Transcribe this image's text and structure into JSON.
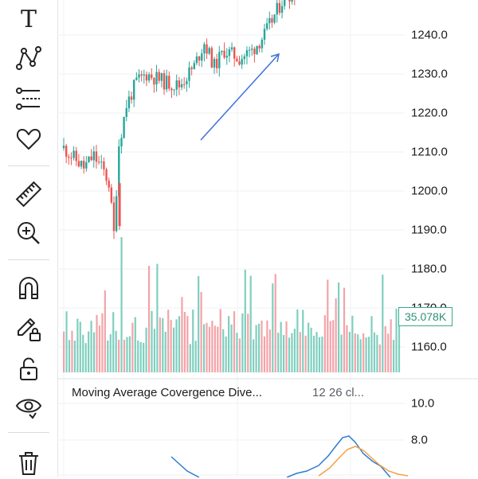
{
  "toolbar": {
    "text_tool": "T",
    "tools": [
      "text-icon",
      "pattern-icon",
      "fib-retracement-icon",
      "heart-icon",
      "ruler-icon",
      "zoom-in-icon",
      "magnet-icon",
      "lock-drawing-icon",
      "unlock-icon",
      "eye-icon",
      "trash-icon"
    ]
  },
  "price_axis": {
    "labels": [
      "1240.0",
      "1230.0",
      "1220.0",
      "1210.0",
      "1200.0",
      "1190.0",
      "1180.0",
      "1170.0",
      "1160.0"
    ]
  },
  "volume": {
    "last_label": "35.078K"
  },
  "macd": {
    "title": "Moving Average Covergence Dive...",
    "params": "12 26 cl...",
    "axis_labels": [
      "10.0",
      "8.0"
    ]
  },
  "colors": {
    "up": "#26a69a",
    "down": "#ef5350",
    "up_volume": "#7fcfbf",
    "down_volume": "#f4a3a8",
    "arrow": "#3d72d6",
    "macd_line": "#2d7dd2",
    "signal_line": "#f5a045"
  }
}
